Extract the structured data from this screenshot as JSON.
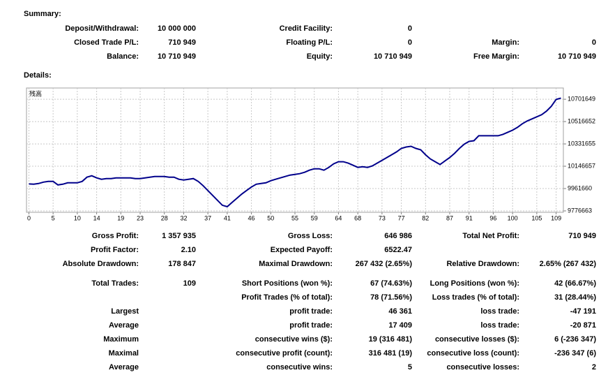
{
  "summary": {
    "title": "Summary:",
    "rows": [
      [
        "Deposit/Withdrawal:",
        "10 000 000",
        "Credit Facility:",
        "0",
        null,
        null
      ],
      [
        "Closed Trade P/L:",
        "710 949",
        "Floating P/L:",
        "0",
        "Margin:",
        "0"
      ],
      [
        "Balance:",
        "10 710 949",
        "Equity:",
        "10 710 949",
        "Free Margin:",
        "10 710 949"
      ]
    ]
  },
  "details": {
    "title": "Details:",
    "rows": [
      [
        "Gross Profit:",
        "1 357 935",
        "Gross Loss:",
        "646 986",
        "Total Net Profit:",
        "710 949"
      ],
      [
        "Profit Factor:",
        "2.10",
        "Expected Payoff:",
        "6522.47",
        null,
        null
      ],
      [
        "Absolute Drawdown:",
        "178 847",
        "Maximal Drawdown:",
        "267 432 (2.65%)",
        "Relative Drawdown:",
        "2.65% (267 432)"
      ],
      [
        "Total Trades:",
        "109",
        "Short Positions (won %):",
        "67 (74.63%)",
        "Long Positions (won %):",
        "42 (66.67%)"
      ],
      [
        null,
        null,
        "Profit Trades (% of total):",
        "78 (71.56%)",
        "Loss trades (% of total):",
        "31 (28.44%)"
      ],
      [
        "Largest",
        null,
        "profit trade:",
        "46 361",
        "loss trade:",
        "-47 191"
      ],
      [
        "Average",
        null,
        "profit trade:",
        "17 409",
        "loss trade:",
        "-20 871"
      ],
      [
        "Maximum",
        null,
        "consecutive wins ($):",
        "19 (316 481)",
        "consecutive losses ($):",
        "6 (-236 347)"
      ],
      [
        "Maximal",
        null,
        "consecutive profit (count):",
        "316 481 (19)",
        "consecutive loss (count):",
        "-236 347 (6)"
      ],
      [
        "Average",
        null,
        "consecutive wins:",
        "5",
        "consecutive losses:",
        "2"
      ]
    ]
  },
  "chart_data": {
    "type": "line",
    "grid": true,
    "xlim": [
      -0.5,
      110.5
    ],
    "xticks": [
      0,
      5,
      10,
      14,
      19,
      23,
      28,
      32,
      37,
      41,
      46,
      50,
      55,
      59,
      64,
      68,
      73,
      77,
      82,
      87,
      91,
      96,
      100,
      105,
      109
    ],
    "ylim": [
      9765000,
      10795000
    ],
    "yticks": [
      9776663,
      9961660,
      10146657,
      10331655,
      10516652,
      10701649
    ],
    "series": [
      {
        "name": "残高",
        "color": "#00008b",
        "values": [
          10000000,
          9997709,
          10003526,
          10015160,
          10020977,
          10020977,
          9991892,
          9997709,
          10009343,
          10009343,
          10009343,
          10020977,
          10055879,
          10067513,
          10050062,
          10038428,
          10044245,
          10044245,
          10050062,
          10050062,
          10050062,
          10050062,
          10044245,
          10044245,
          10050062,
          10055879,
          10061696,
          10061696,
          10061696,
          10055879,
          10055879,
          10038428,
          10032611,
          10038428,
          10044245,
          10020977,
          9986075,
          9945356,
          9904637,
          9863918,
          9823199,
          9811565,
          9846467,
          9881369,
          9916271,
          9945356,
          9974441,
          9997709,
          10003526,
          10009343,
          10026794,
          10038428,
          10050062,
          10061696,
          10073330,
          10079147,
          10084964,
          10096598,
          10114049,
          10125683,
          10125683,
          10114049,
          10137317,
          10166402,
          10183853,
          10183853,
          10172219,
          10154768,
          10137317,
          10143134,
          10137317,
          10148951,
          10172219,
          10195487,
          10218755,
          10242023,
          10265291,
          10294376,
          10306010,
          10311827,
          10294376,
          10282742,
          10242023,
          10207121,
          10183853,
          10160585,
          10189670,
          10218755,
          10253657,
          10294376,
          10329278,
          10352546,
          10358363,
          10399082,
          10399082,
          10399082,
          10399082,
          10399082,
          10410716,
          10428167,
          10445618,
          10468886,
          10497971,
          10521239,
          10538690,
          10556141,
          10573592,
          10602677,
          10643396,
          10700000,
          10710949
        ]
      }
    ]
  }
}
